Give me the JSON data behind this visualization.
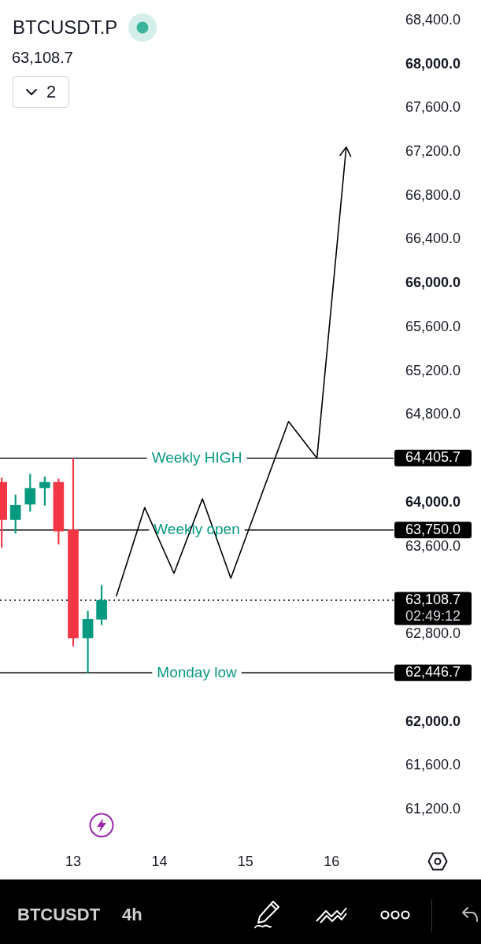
{
  "chart_data": {
    "type": "candlestick",
    "title": "BTCUSDT.P",
    "subtitle": "63,108.7",
    "x": [
      12.17,
      12.33,
      12.5,
      12.67,
      12.83,
      13,
      13.17,
      13.33
    ],
    "ohlc": [
      [
        64185,
        64225,
        63590,
        63845
      ],
      [
        63845,
        64070,
        63720,
        63975
      ],
      [
        63985,
        64260,
        63920,
        64130
      ],
      [
        64135,
        64235,
        63975,
        64185
      ],
      [
        64185,
        64215,
        63620,
        63740
      ],
      [
        63750,
        64405.7,
        62690,
        62765
      ],
      [
        62765,
        63010,
        62446.7,
        62935
      ],
      [
        62935,
        63245,
        62885,
        63108.7
      ]
    ],
    "colors": [
      "#f23645",
      "#089981",
      "#089981",
      "#089981",
      "#f23645",
      "#f23645",
      "#089981",
      "#089981"
    ],
    "series": [
      {
        "type": "line",
        "color": "#000000",
        "x": [
          13.5,
          13.83,
          14.17,
          14.5,
          14.83,
          15.5,
          15.83,
          16.17
        ],
        "values": [
          63145,
          63955,
          63355,
          64035,
          63310,
          64740,
          64405,
          67245
        ]
      }
    ],
    "xlim": [
      12.15,
      16.72
    ],
    "xticks": [
      13,
      14,
      15,
      16
    ],
    "ylim": [
      61200,
      68400
    ],
    "yticks": [
      {
        "value": 61200,
        "label": "61,200.0"
      },
      {
        "value": 61600,
        "label": "61,600.0"
      },
      {
        "value": 62000,
        "label": "62,000.0"
      },
      {
        "value": 62800,
        "label": "62,800.0"
      },
      {
        "value": 63600,
        "label": "63,600.0"
      },
      {
        "value": 64000,
        "label": "64,000.0"
      },
      {
        "value": 64800,
        "label": "64,800.0"
      },
      {
        "value": 65200,
        "label": "65,200.0"
      },
      {
        "value": 65600,
        "label": "65,600.0"
      },
      {
        "value": 66000,
        "label": "66,000.0"
      },
      {
        "value": 66400,
        "label": "66,400.0"
      },
      {
        "value": 66800,
        "label": "66,800.0"
      },
      {
        "value": 67200,
        "label": "67,200.0"
      },
      {
        "value": 67600,
        "label": "67,600.0"
      },
      {
        "value": 68000,
        "label": "68,000.0"
      },
      {
        "value": 68400,
        "label": "68,400.0"
      }
    ],
    "ref_lines": [
      {
        "axis": "y",
        "value": 64405.7,
        "label": "64,405.7",
        "color": "#000000"
      },
      {
        "axis": "y",
        "value": 63750,
        "label": "63,750.0",
        "color": "#000000"
      },
      {
        "axis": "y",
        "value": 63108.7,
        "label": "63,108.7\n02:49:12",
        "color": "#000000",
        "line_style": "dotted"
      },
      {
        "axis": "y",
        "value": 62446.7,
        "label": "62,446.7",
        "color": "#000000"
      }
    ],
    "annotations": [
      {
        "text": "Weekly HIGH",
        "y": 64405.7
      },
      {
        "text": "Weekly open",
        "y": 63750
      },
      {
        "text": "Monday low",
        "y": 62446.7
      },
      "2",
      "BTCUSDT",
      "4h"
    ]
  }
}
